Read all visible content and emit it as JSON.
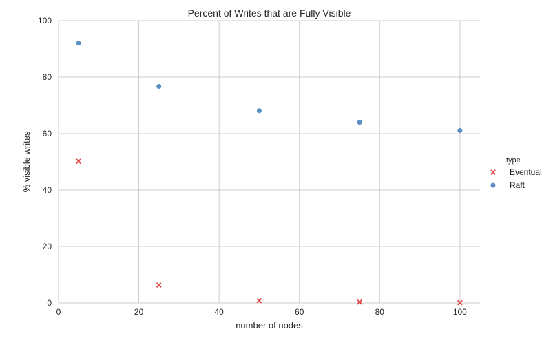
{
  "chart_data": {
    "type": "scatter",
    "title": "Percent of Writes that are Fully Visible",
    "xlabel": "number of nodes",
    "ylabel": "% visible writes",
    "xlim": [
      0,
      105
    ],
    "ylim": [
      0,
      100
    ],
    "x_ticks": [
      "0",
      "20",
      "40",
      "60",
      "80",
      "100"
    ],
    "y_ticks": [
      "0",
      "20",
      "40",
      "60",
      "80",
      "100"
    ],
    "grid": true,
    "legend": {
      "title": "type",
      "placement": "right"
    },
    "series": [
      {
        "name": "Eventual",
        "marker": "x",
        "color": "#e24a4a",
        "points": [
          {
            "x": 5,
            "y": 50.2
          },
          {
            "x": 25,
            "y": 6.3
          },
          {
            "x": 50,
            "y": 0.8
          },
          {
            "x": 75,
            "y": 0.3
          },
          {
            "x": 100,
            "y": 0.1
          }
        ]
      },
      {
        "name": "Raft",
        "marker": "circle",
        "color": "#5b8fc4",
        "points": [
          {
            "x": 5,
            "y": 92.0
          },
          {
            "x": 25,
            "y": 76.7
          },
          {
            "x": 50,
            "y": 68.1
          },
          {
            "x": 75,
            "y": 64.0
          },
          {
            "x": 100,
            "y": 61.1
          }
        ]
      }
    ]
  }
}
